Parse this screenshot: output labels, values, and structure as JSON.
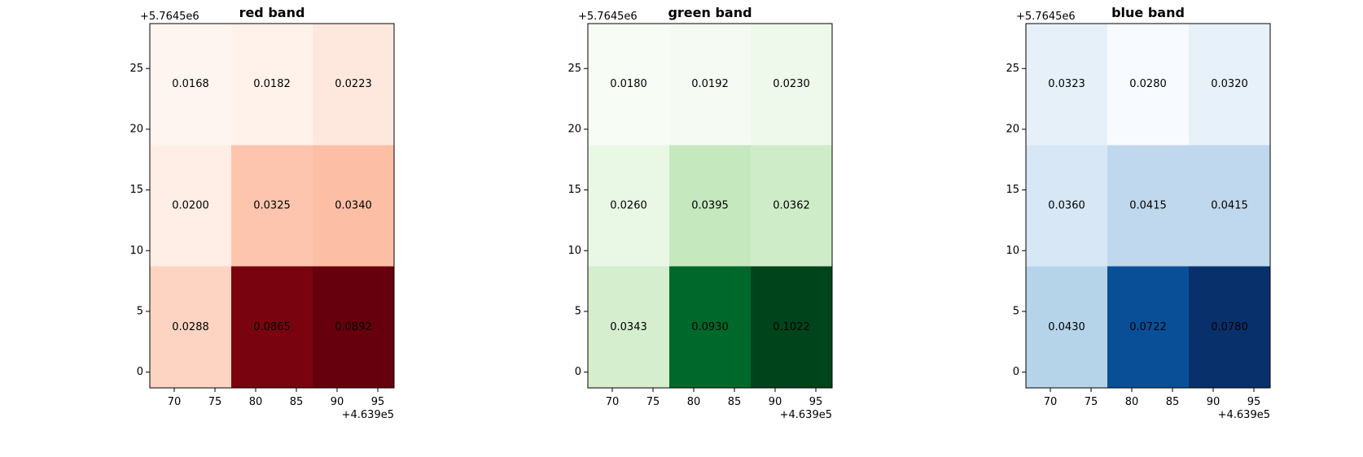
{
  "chart_data": [
    {
      "type": "heatmap",
      "title": "red band",
      "colormap": "Reds",
      "x_offset_label": "+4.639e5",
      "y_offset_label": "+5.7645e6",
      "x_ticks": [
        70,
        75,
        80,
        85,
        90,
        95
      ],
      "y_ticks": [
        0,
        5,
        10,
        15,
        20,
        25
      ],
      "xlim": [
        67,
        97
      ],
      "ylim": [
        -1.3,
        28.7
      ],
      "x_edges": [
        67,
        77,
        87,
        97
      ],
      "y_edges": [
        -1.3,
        8.7,
        18.7,
        28.7
      ],
      "value_range": [
        0.0168,
        0.0892
      ],
      "rows": [
        [
          0.0168,
          0.0182,
          0.0223
        ],
        [
          0.02,
          0.0325,
          0.034
        ],
        [
          0.0288,
          0.0865,
          0.0892
        ]
      ],
      "labels": [
        [
          "0.0168",
          "0.0182",
          "0.0223"
        ],
        [
          "0.0200",
          "0.0325",
          "0.0340"
        ],
        [
          "0.0288",
          "0.0865",
          "0.0892"
        ]
      ]
    },
    {
      "type": "heatmap",
      "title": "green band",
      "colormap": "Greens",
      "x_offset_label": "+4.639e5",
      "y_offset_label": "+5.7645e6",
      "x_ticks": [
        70,
        75,
        80,
        85,
        90,
        95
      ],
      "y_ticks": [
        0,
        5,
        10,
        15,
        20,
        25
      ],
      "xlim": [
        67,
        97
      ],
      "ylim": [
        -1.3,
        28.7
      ],
      "x_edges": [
        67,
        77,
        87,
        97
      ],
      "y_edges": [
        -1.3,
        8.7,
        18.7,
        28.7
      ],
      "value_range": [
        0.018,
        0.1022
      ],
      "rows": [
        [
          0.018,
          0.0192,
          0.023
        ],
        [
          0.026,
          0.0395,
          0.0362
        ],
        [
          0.0343,
          0.093,
          0.1022
        ]
      ],
      "labels": [
        [
          "0.0180",
          "0.0192",
          "0.0230"
        ],
        [
          "0.0260",
          "0.0395",
          "0.0362"
        ],
        [
          "0.0343",
          "0.0930",
          "0.1022"
        ]
      ]
    },
    {
      "type": "heatmap",
      "title": "blue band",
      "colormap": "Blues",
      "x_offset_label": "+4.639e5",
      "y_offset_label": "+5.7645e6",
      "x_ticks": [
        70,
        75,
        80,
        85,
        90,
        95
      ],
      "y_ticks": [
        0,
        5,
        10,
        15,
        20,
        25
      ],
      "xlim": [
        67,
        97
      ],
      "ylim": [
        -1.3,
        28.7
      ],
      "x_edges": [
        67,
        77,
        87,
        97
      ],
      "y_edges": [
        -1.3,
        8.7,
        18.7,
        28.7
      ],
      "value_range": [
        0.028,
        0.078
      ],
      "rows": [
        [
          0.0323,
          0.028,
          0.032
        ],
        [
          0.036,
          0.0415,
          0.0415
        ],
        [
          0.043,
          0.0722,
          0.078
        ]
      ],
      "labels": [
        [
          "0.0323",
          "0.0280",
          "0.0320"
        ],
        [
          "0.0360",
          "0.0415",
          "0.0415"
        ],
        [
          "0.0430",
          "0.0722",
          "0.0780"
        ]
      ]
    }
  ]
}
